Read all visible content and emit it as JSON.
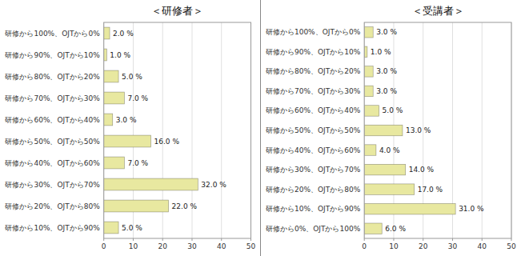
{
  "chart_data": [
    {
      "type": "bar",
      "orientation": "horizontal",
      "title": "＜研修者＞",
      "categories": [
        "研修から100%、OJTから0%",
        "研修から90%、OJTから10%",
        "研修から80%、OJTから20%",
        "研修から70%、OJTから30%",
        "研修から60%、OJTから40%",
        "研修から50%、OJTから50%",
        "研修から40%、OJTから60%",
        "研修から30%、OJTから70%",
        "研修から20%、OJTから80%",
        "研修から10%、OJTから90%"
      ],
      "values": [
        2.0,
        1.0,
        5.0,
        7.0,
        3.0,
        16.0,
        7.0,
        32.0,
        22.0,
        5.0
      ],
      "value_labels": [
        "2.0 %",
        "1.0 %",
        "5.0 %",
        "7.0 %",
        "3.0 %",
        "16.0 %",
        "7.0 %",
        "32.0 %",
        "22.0 %",
        "5.0 %"
      ],
      "data_labels": true,
      "color": "#e8e8a0",
      "xlim": [
        0,
        50
      ],
      "xticks": [
        0,
        10,
        20,
        30,
        40,
        50
      ],
      "grid": true
    },
    {
      "type": "bar",
      "orientation": "horizontal",
      "title": "＜受講者＞",
      "categories": [
        "研修から100%、OJTから0%",
        "研修から90%、OJTから10%",
        "研修から80%、OJTから20%",
        "研修から70%、OJTから30%",
        "研修から60%、OJTから40%",
        "研修から50%、OJTから50%",
        "研修から40%、OJTから60%",
        "研修から30%、OJTから70%",
        "研修から20%、OJTから80%",
        "研修から10%、OJTから90%",
        "研修から0%、OJTから100%"
      ],
      "values": [
        3.0,
        1.0,
        3.0,
        3.0,
        5.0,
        13.0,
        4.0,
        14.0,
        17.0,
        31.0,
        6.0
      ],
      "value_labels": [
        "3.0 %",
        "1.0 %",
        "3.0 %",
        "3.0 %",
        "5.0 %",
        "13.0 %",
        "4.0 %",
        "14.0 %",
        "17.0 %",
        "31.0 %",
        "6.0 %"
      ],
      "data_labels": true,
      "color": "#e8e8a0",
      "xlim": [
        0,
        50
      ],
      "xticks": [
        0,
        10,
        20,
        30,
        40,
        50
      ],
      "grid": true
    }
  ]
}
